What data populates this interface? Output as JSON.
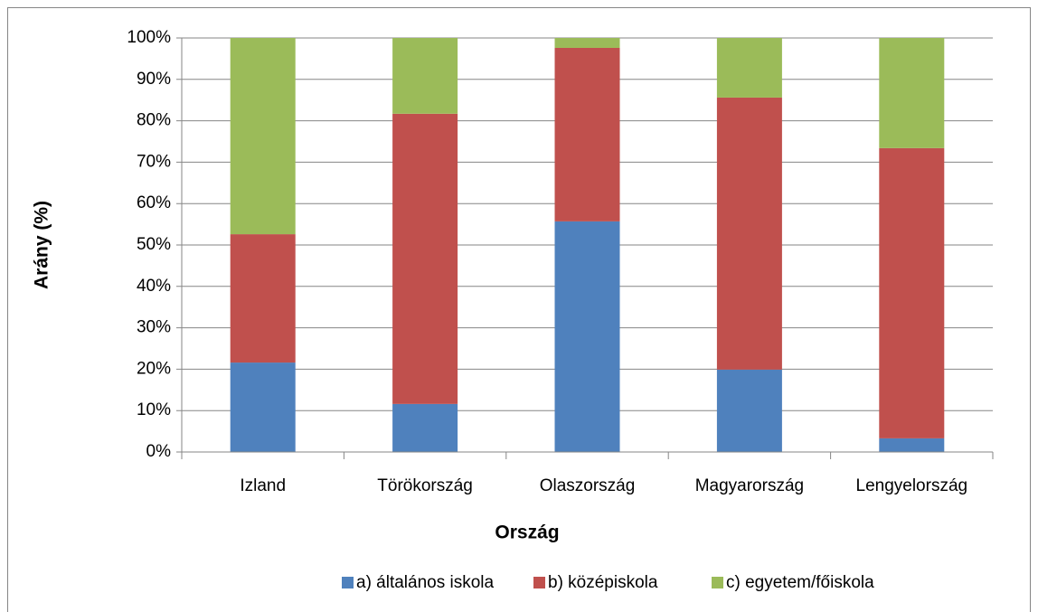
{
  "chart_data": {
    "type": "stacked_bar",
    "xlabel": "Ország",
    "ylabel": "Arány (%)",
    "categories": [
      "Izland",
      "Törökország",
      "Olaszország",
      "Magyarország",
      "Lengyelország"
    ],
    "series": [
      {
        "name": "a) általános iskola",
        "color": "#4f81bd",
        "values": [
          21.6,
          11.6,
          55.7,
          19.9,
          3.3
        ]
      },
      {
        "name": "b) középiskola",
        "color": "#c0504d",
        "values": [
          31.0,
          70.1,
          41.9,
          65.7,
          70.1
        ]
      },
      {
        "name": "c) egyetem/főiskola",
        "color": "#9bbb59",
        "values": [
          47.4,
          18.3,
          2.4,
          14.4,
          26.6
        ]
      }
    ],
    "ylim": [
      0,
      100
    ],
    "yticks": [
      {
        "value": 0,
        "label": "0%"
      },
      {
        "value": 10,
        "label": "10%"
      },
      {
        "value": 20,
        "label": "20%"
      },
      {
        "value": 30,
        "label": "30%"
      },
      {
        "value": 40,
        "label": "40%"
      },
      {
        "value": 50,
        "label": "50%"
      },
      {
        "value": 60,
        "label": "60%"
      },
      {
        "value": 70,
        "label": "70%"
      },
      {
        "value": 80,
        "label": "80%"
      },
      {
        "value": 90,
        "label": "90%"
      },
      {
        "value": 100,
        "label": "100%"
      }
    ],
    "grid": true,
    "legend": "bottom"
  }
}
